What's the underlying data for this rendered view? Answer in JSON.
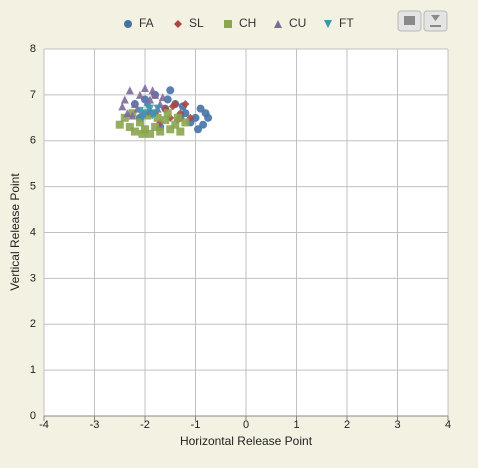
{
  "chart_data": {
    "type": "scatter",
    "x_label": "Horizontal Release Point",
    "y_label": "Vertical Release Point",
    "xlim": [
      -4,
      4
    ],
    "xticks": [
      -4,
      -3,
      -2,
      -1,
      0,
      1,
      2,
      3,
      4
    ],
    "ylim": [
      0,
      8
    ],
    "yticks": [
      0,
      1,
      2,
      3,
      4,
      5,
      6,
      7,
      8
    ],
    "grid": true,
    "legend": "top",
    "series": [
      {
        "name": "FA",
        "color": "#4572a7",
        "marker": "circle",
        "x": [
          -2.2,
          -2.0,
          -1.9,
          -1.8,
          -1.6,
          -1.5,
          -1.4,
          -1.3,
          -1.2,
          -1.1,
          -1.0,
          -0.9,
          -0.8,
          -0.75,
          -0.95,
          -1.7,
          -2.1,
          -1.55,
          -1.25,
          -0.85
        ],
        "y": [
          6.8,
          6.9,
          6.6,
          7.0,
          6.7,
          7.1,
          6.8,
          6.5,
          6.6,
          6.4,
          6.5,
          6.7,
          6.6,
          6.5,
          6.25,
          6.3,
          6.5,
          6.9,
          6.75,
          6.35
        ]
      },
      {
        "name": "SL",
        "color": "#aa4643",
        "marker": "diamond",
        "x": [
          -1.8,
          -1.6,
          -1.5,
          -1.4,
          -1.3,
          -1.2,
          -1.1,
          -1.7,
          -1.35,
          -1.45
        ],
        "y": [
          6.6,
          6.7,
          6.5,
          6.8,
          6.6,
          6.8,
          6.5,
          6.4,
          6.45,
          6.75
        ]
      },
      {
        "name": "CH",
        "color": "#89a54e",
        "marker": "square",
        "x": [
          -2.5,
          -2.4,
          -2.3,
          -2.2,
          -2.1,
          -2.0,
          -1.9,
          -1.8,
          -1.7,
          -1.6,
          -1.5,
          -1.4,
          -1.3,
          -1.2,
          -2.25,
          -1.95,
          -1.75,
          -1.55,
          -1.35,
          -2.05
        ],
        "y": [
          6.35,
          6.5,
          6.3,
          6.2,
          6.4,
          6.25,
          6.15,
          6.3,
          6.2,
          6.45,
          6.25,
          6.35,
          6.2,
          6.4,
          6.6,
          6.55,
          6.5,
          6.6,
          6.5,
          6.15
        ]
      },
      {
        "name": "CU",
        "color": "#80699b",
        "marker": "triangle",
        "x": [
          -2.4,
          -2.3,
          -2.2,
          -2.1,
          -2.0,
          -1.9,
          -1.8,
          -1.7,
          -2.35,
          -2.15,
          -1.95,
          -1.85,
          -2.25,
          -2.05,
          -1.75,
          -1.65,
          -2.45,
          -1.9
        ],
        "y": [
          6.9,
          7.1,
          6.8,
          7.0,
          7.15,
          6.9,
          7.0,
          6.8,
          6.6,
          6.7,
          6.85,
          7.1,
          6.55,
          6.6,
          6.7,
          6.95,
          6.75,
          6.65
        ]
      },
      {
        "name": "FT",
        "color": "#3d96ae",
        "marker": "triangle-down",
        "x": [
          -2.0,
          -1.9,
          -1.85,
          -2.1,
          -1.95,
          -1.8,
          -2.05,
          -1.75
        ],
        "y": [
          6.6,
          6.7,
          6.55,
          6.65,
          6.75,
          6.6,
          6.5,
          6.7
        ]
      }
    ]
  }
}
